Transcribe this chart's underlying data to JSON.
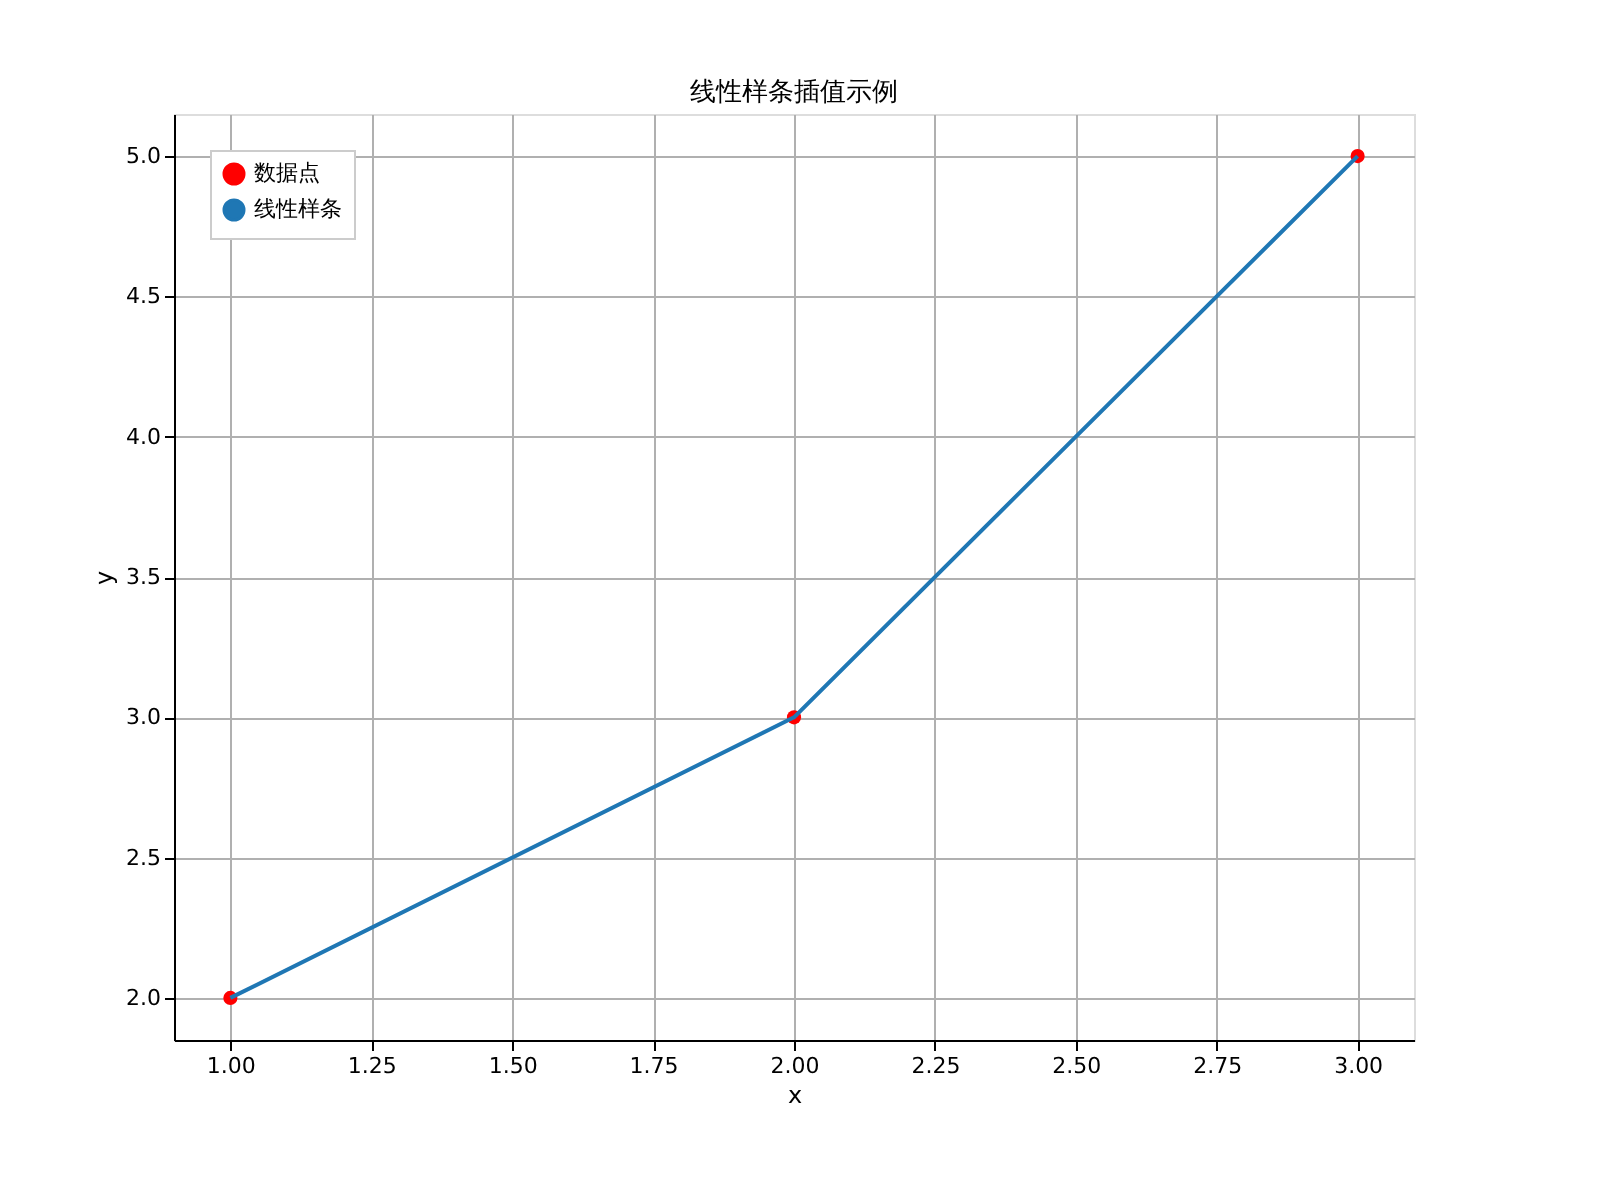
{
  "chart_data": {
    "type": "line",
    "title": "线性样条插值示例",
    "xlabel": "x",
    "ylabel": "y",
    "xlim": [
      0.9,
      3.1
    ],
    "xticks": [
      {
        "value": 1,
        "label": "1.00"
      },
      {
        "value": 1.25,
        "label": "1.25"
      },
      {
        "value": 1.5,
        "label": "1.50"
      },
      {
        "value": 1.75,
        "label": "1.75"
      },
      {
        "value": 2,
        "label": "2.00"
      },
      {
        "value": 2.25,
        "label": "2.25"
      },
      {
        "value": 2.5,
        "label": "2.50"
      },
      {
        "value": 2.75,
        "label": "2.75"
      },
      {
        "value": 3,
        "label": "3.00"
      }
    ],
    "ylim": [
      1.85,
      5.15
    ],
    "yticks": [
      {
        "value": 2,
        "label": "2.0"
      },
      {
        "value": 2.5,
        "label": "2.5"
      },
      {
        "value": 3,
        "label": "3.0"
      },
      {
        "value": 3.5,
        "label": "3.5"
      },
      {
        "value": 4,
        "label": "4.0"
      },
      {
        "value": 4.5,
        "label": "4.5"
      },
      {
        "value": 5,
        "label": "5.0"
      }
    ],
    "grid": true,
    "legend": "top left",
    "series": [
      {
        "name": "数据点",
        "type": "scatter",
        "color": "#ff0000",
        "marker": "circle",
        "x": [
          1,
          2,
          3
        ],
        "values": [
          2,
          3,
          5
        ]
      },
      {
        "name": "线性样条",
        "color": "#1f77b4",
        "marker": "none",
        "line_style": "solid",
        "x": [
          1,
          2,
          3
        ],
        "values": [
          2,
          3,
          5
        ]
      }
    ]
  }
}
